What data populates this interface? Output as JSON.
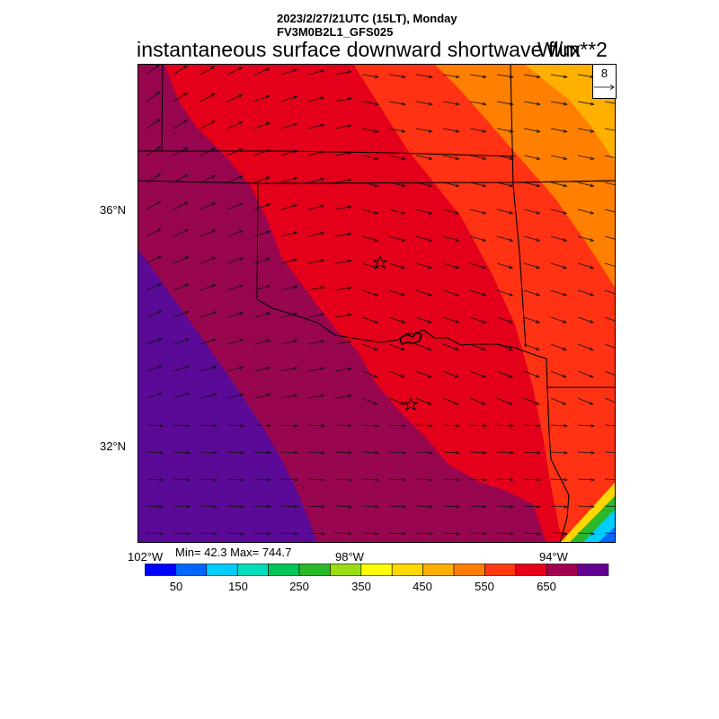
{
  "header": {
    "datetime": "2023/2/27/21UTC (15LT), Monday",
    "model": "FV3M0B2L1_GFS025",
    "title": "instantaneous surface downward shortwave flux",
    "units": "W/m**2"
  },
  "reference_vector": {
    "value": "8"
  },
  "axes": {
    "lat_labels": [
      "36°N",
      "32°N"
    ],
    "lon_labels": [
      "102°W",
      "98°W",
      "94°W"
    ]
  },
  "stats": {
    "text": "Min= 42.3 Max= 744.7"
  },
  "colorbar": {
    "colors": [
      "#0000ff",
      "#0066ff",
      "#00ccff",
      "#00ddbb",
      "#00c455",
      "#2ab82a",
      "#99dd11",
      "#ffff00",
      "#ffd700",
      "#ffb000",
      "#ff7f00",
      "#ff3a10",
      "#e8001a",
      "#a3004e",
      "#62008f"
    ],
    "labels": [
      "50",
      "150",
      "250",
      "350",
      "450",
      "550",
      "650"
    ]
  },
  "map": {
    "fill_colors": {
      "purple": "#5a0a96",
      "maroon": "#98064f",
      "red": "#e4001a",
      "red_orange": "#ff3214",
      "orange": "#ff7f00",
      "light_orange": "#ffb000",
      "yellow": "#ffd700",
      "green": "#2ab82a",
      "cyan": "#00ccff",
      "blue": "#0066ff"
    },
    "city_markers": [
      "star-north",
      "star-south"
    ]
  }
}
